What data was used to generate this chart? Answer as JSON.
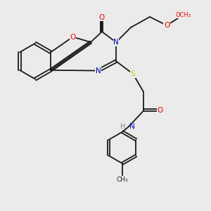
{
  "bg_color": "#ebebeb",
  "bond_color": "#1a1a1a",
  "figsize": [
    3.0,
    3.0
  ],
  "dpi": 100,
  "atom_colors": {
    "O": "#ff0000",
    "N": "#0000cc",
    "S": "#cccc00",
    "H": "#808080"
  }
}
